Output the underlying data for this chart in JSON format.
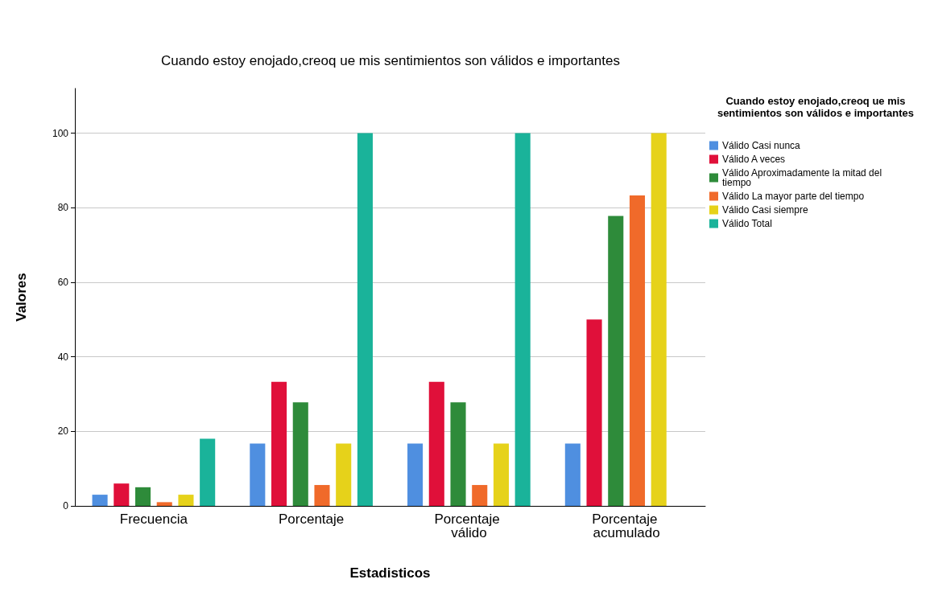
{
  "chart_data": {
    "type": "bar",
    "title": "Cuando estoy enojado,creoq ue mis sentimientos son válidos e importantes",
    "xlabel": "Estadisticos",
    "ylabel": "Valores",
    "legend_title": "Cuando estoy enojado,creoq ue mis sentimientos son válidos e importantes",
    "categories": [
      "Frecuencia",
      "Porcentaje",
      "Porcentaje válido",
      "Porcentaje acumulado"
    ],
    "series": [
      {
        "name": "Válido Casi nunca",
        "color": "#4f8fe0",
        "values": [
          3,
          16.7,
          16.7,
          16.7
        ]
      },
      {
        "name": "Válido A veces",
        "color": "#e0103a",
        "values": [
          6,
          33.3,
          33.3,
          50
        ]
      },
      {
        "name": "Válido Aproximadamente la mitad del tiempo",
        "color": "#2e8b3a",
        "values": [
          5,
          27.8,
          27.8,
          77.8
        ]
      },
      {
        "name": "Válido La mayor parte del tiempo",
        "color": "#f06a2a",
        "values": [
          1,
          5.6,
          5.6,
          83.3
        ]
      },
      {
        "name": "Válido Casi siempre",
        "color": "#e6d21a",
        "values": [
          3,
          16.7,
          16.7,
          100
        ]
      },
      {
        "name": "Válido Total",
        "color": "#1ab39a",
        "values": [
          18,
          100,
          100,
          null
        ]
      }
    ],
    "ylim": [
      0,
      112
    ],
    "yticks": [
      0,
      20,
      40,
      60,
      80,
      100
    ],
    "grid": "y",
    "legend": "top right"
  }
}
